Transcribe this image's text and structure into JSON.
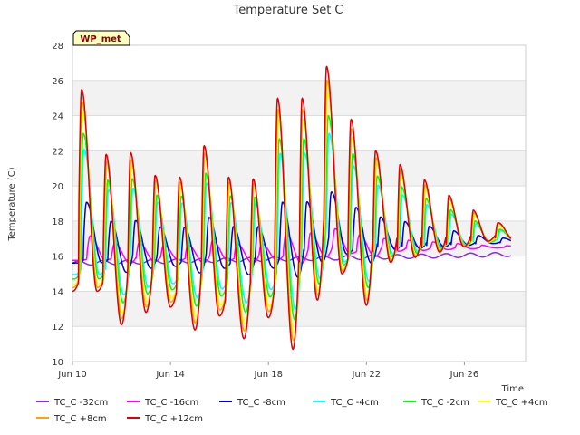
{
  "chart_data": {
    "type": "line",
    "title": "Temperature Set C",
    "xlabel": "Time",
    "ylabel": "Temperature (C)",
    "badge": "WP_met",
    "ylim": [
      10,
      28
    ],
    "xlim": [
      0,
      18.5
    ],
    "x_unit": "days since Jun 10",
    "yticks": [
      10,
      12,
      14,
      16,
      18,
      20,
      22,
      24,
      26,
      28
    ],
    "xticks": [
      {
        "pos": 0,
        "label": "Jun 10"
      },
      {
        "pos": 4,
        "label": "Jun 14"
      },
      {
        "pos": 8,
        "label": "Jun 18"
      },
      {
        "pos": 12,
        "label": "Jun 22"
      },
      {
        "pos": 16,
        "label": "Jun 26"
      }
    ],
    "grid": true,
    "legend_position": "bottom",
    "x_end": 17.9,
    "peaks": [
      25.5,
      21.8,
      21.9,
      20.6,
      20.5,
      22.3,
      20.5,
      20.4,
      25.0,
      25.0,
      26.8,
      23.8,
      22.0
    ],
    "troughs": [
      14.0,
      12.1,
      12.8,
      13.1,
      11.8,
      12.6,
      11.3,
      12.5,
      10.7,
      13.5,
      15.0,
      13.2,
      15.5
    ],
    "series": [
      {
        "name": "TC_C -32cm",
        "color": "#8a2be2",
        "amp": 0.0,
        "lag": 0.0,
        "base_start": 15.6,
        "base_end": 16.1
      },
      {
        "name": "TC_C -16cm",
        "color": "#ff00ff",
        "amp": 0.12,
        "lag": 0.35,
        "base_start": 16.0,
        "base_end": 16.5
      },
      {
        "name": "TC_C -8cm",
        "color": "#0000cd",
        "amp": 0.3,
        "lag": 0.2,
        "base_start": 16.3,
        "base_end": 16.8
      },
      {
        "name": "TC_C -4cm",
        "color": "#00ffff",
        "amp": 0.62,
        "lag": 0.1,
        "base_start": 16.5,
        "base_end": 17.0
      },
      {
        "name": "TC_C -2cm",
        "color": "#00ff00",
        "amp": 0.72,
        "lag": 0.07,
        "base_start": 16.5,
        "base_end": 17.0
      },
      {
        "name": "TC_C +4cm",
        "color": "#ffff00",
        "amp": 0.85,
        "lag": 0.04,
        "base_start": 16.6,
        "base_end": 17.1
      },
      {
        "name": "TC_C +8cm",
        "color": "#ffa500",
        "amp": 0.92,
        "lag": 0.02,
        "base_start": 16.6,
        "base_end": 17.2
      },
      {
        "name": "TC_C +12cm",
        "color": "#e00000",
        "amp": 1.0,
        "lag": 0.0,
        "base_start": 16.7,
        "base_end": 17.2
      }
    ]
  }
}
